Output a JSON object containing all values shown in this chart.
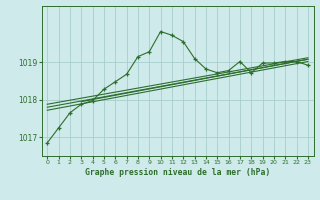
{
  "title": "Graphe pression niveau de la mer (hPa)",
  "background_color": "#ceeaea",
  "grid_color": "#a8cece",
  "line_color": "#2d6e2d",
  "xlim": [
    -0.5,
    23.5
  ],
  "ylim": [
    1016.5,
    1020.5
  ],
  "yticks": [
    1017,
    1018,
    1019
  ],
  "xticks": [
    0,
    1,
    2,
    3,
    4,
    5,
    6,
    7,
    8,
    9,
    10,
    11,
    12,
    13,
    14,
    15,
    16,
    17,
    18,
    19,
    20,
    21,
    22,
    23
  ],
  "main_line": [
    [
      0,
      1016.85
    ],
    [
      1,
      1017.25
    ],
    [
      2,
      1017.65
    ],
    [
      3,
      1017.88
    ],
    [
      4,
      1017.98
    ],
    [
      5,
      1018.28
    ],
    [
      6,
      1018.48
    ],
    [
      7,
      1018.68
    ],
    [
      8,
      1019.15
    ],
    [
      9,
      1019.28
    ],
    [
      10,
      1019.82
    ],
    [
      11,
      1019.72
    ],
    [
      12,
      1019.55
    ],
    [
      13,
      1019.1
    ],
    [
      14,
      1018.82
    ],
    [
      15,
      1018.72
    ],
    [
      16,
      1018.78
    ],
    [
      17,
      1019.02
    ],
    [
      18,
      1018.72
    ],
    [
      19,
      1018.98
    ],
    [
      20,
      1018.98
    ],
    [
      21,
      1019.02
    ],
    [
      22,
      1019.02
    ],
    [
      23,
      1018.92
    ]
  ],
  "trend_lines": [
    [
      [
        0,
        1017.72
      ],
      [
        23,
        1019.02
      ]
    ],
    [
      [
        0,
        1017.8
      ],
      [
        23,
        1019.08
      ]
    ],
    [
      [
        0,
        1017.88
      ],
      [
        23,
        1019.12
      ]
    ],
    [
      [
        3,
        1017.95
      ],
      [
        23,
        1019.08
      ]
    ]
  ],
  "figsize": [
    3.2,
    2.0
  ],
  "dpi": 100
}
